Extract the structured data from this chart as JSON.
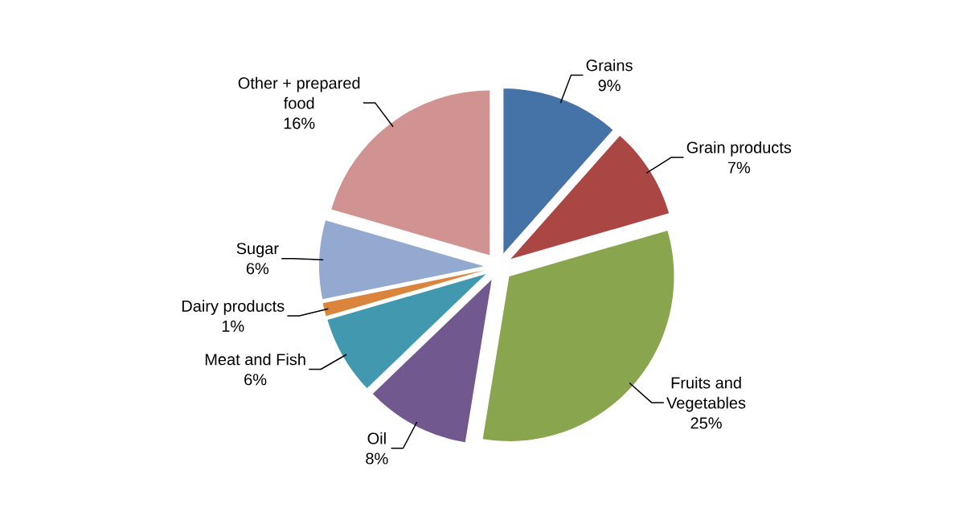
{
  "chart_data": {
    "type": "pie",
    "categories": [
      "Grains",
      "Grain products",
      "Fruits and Vegetables",
      "Oil",
      "Meat and Fish",
      "Dairy products",
      "Sugar",
      "Other + prepared food"
    ],
    "values": [
      9,
      7,
      25,
      8,
      6,
      1,
      6,
      16
    ],
    "value_labels": [
      "9%",
      "7%",
      "25%",
      "8%",
      "6%",
      "1%",
      "6%",
      "16%"
    ],
    "colors": [
      "#4572a7",
      "#aa4643",
      "#89a54e",
      "#71588f",
      "#4198af",
      "#db843d",
      "#93a9cf",
      "#d19392"
    ]
  }
}
